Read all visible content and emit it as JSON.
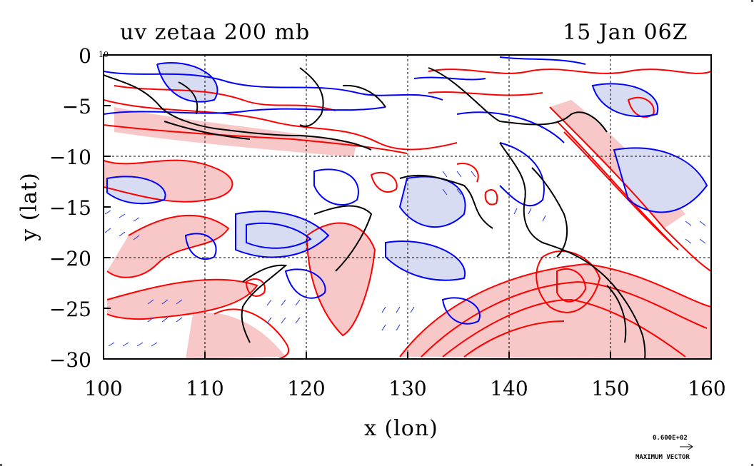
{
  "header": {
    "title_left": "uv zetaa 200 mb",
    "title_right": "15 Jan 06Z"
  },
  "axes": {
    "xlabel": "x (lon)",
    "ylabel": "y (lat)",
    "x_ticks": [
      "100",
      "110",
      "120",
      "130",
      "140",
      "150",
      "160"
    ],
    "y_ticks": [
      "0",
      "−5",
      "−10",
      "−15",
      "−20",
      "−25",
      "−30"
    ],
    "corner_label": "10",
    "xlim": [
      100,
      160
    ],
    "ylim": [
      -30,
      0
    ]
  },
  "legend": {
    "max_vector_value": "0.600E+02",
    "max_vector_label": "MAXIMUM VECTOR"
  },
  "colors": {
    "positive_contour": "#ff0000",
    "negative_contour": "#0000ff",
    "positive_fill": "#f8c8c8",
    "negative_fill": "#d8dcf2",
    "coastline": "#000000",
    "wind_vector": "#2030e0"
  }
}
